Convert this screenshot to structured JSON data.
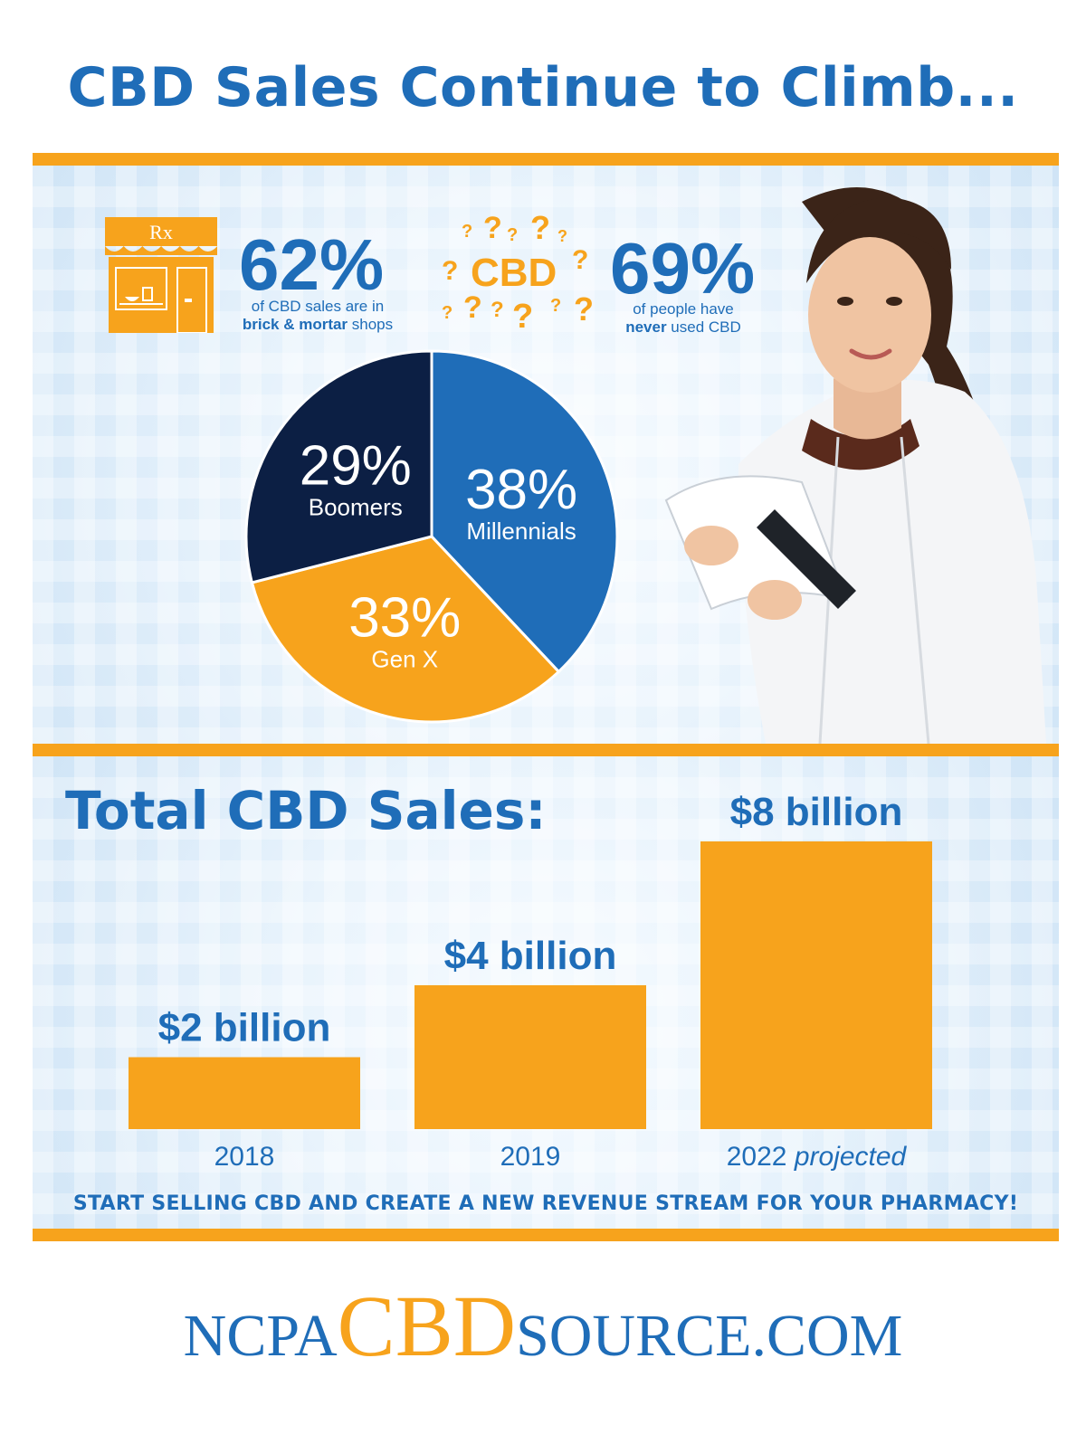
{
  "header": {
    "title": "CBD Sales Continue to Climb..."
  },
  "stats": {
    "brick_mortar": {
      "value": "62%",
      "line1": "of CBD sales are in",
      "line2_bold": "brick & mortar",
      "line2_rest": " shops"
    },
    "never_used": {
      "value": "69%",
      "line1": "of people have",
      "line2_bold": "never",
      "line2_rest": " used CBD"
    },
    "cbd_word": "CBD",
    "rx_symbol": "Rx"
  },
  "colors": {
    "primary_blue": "#1f6db8",
    "dark_navy": "#0c1f44",
    "orange": "#f7a31c"
  },
  "icons": [
    "pharmacy-storefront-icon",
    "question-marks-icon",
    "pharmacist-photo"
  ],
  "chart_data": [
    {
      "type": "pie",
      "slices": [
        {
          "label": "Millennials",
          "value": 38,
          "display": "38%",
          "color": "#1f6db8"
        },
        {
          "label": "Gen X",
          "value": 33,
          "display": "33%",
          "color": "#f7a31c"
        },
        {
          "label": "Boomers",
          "value": 29,
          "display": "29%",
          "color": "#0c1f44"
        }
      ]
    },
    {
      "type": "bar",
      "title": "Total CBD Sales:",
      "categories": [
        "2018",
        "2019",
        "2022 projected"
      ],
      "category_parts": [
        {
          "text": "2018",
          "italic": ""
        },
        {
          "text": "2019",
          "italic": ""
        },
        {
          "text": "2022 ",
          "italic": "projected"
        }
      ],
      "values": [
        2,
        4,
        8
      ],
      "value_labels": [
        "$2 billion",
        "$4 billion",
        "$8 billion"
      ],
      "unit": "billion USD",
      "color": "#f7a31c",
      "ylim": [
        0,
        8
      ]
    }
  ],
  "footer": {
    "cta": "START SELLING CBD AND CREATE A NEW REVENUE STREAM FOR YOUR PHARMACY!",
    "brand_part1": "NCPA",
    "brand_part2": "CBD",
    "brand_part3": "SOURCE.COM"
  }
}
